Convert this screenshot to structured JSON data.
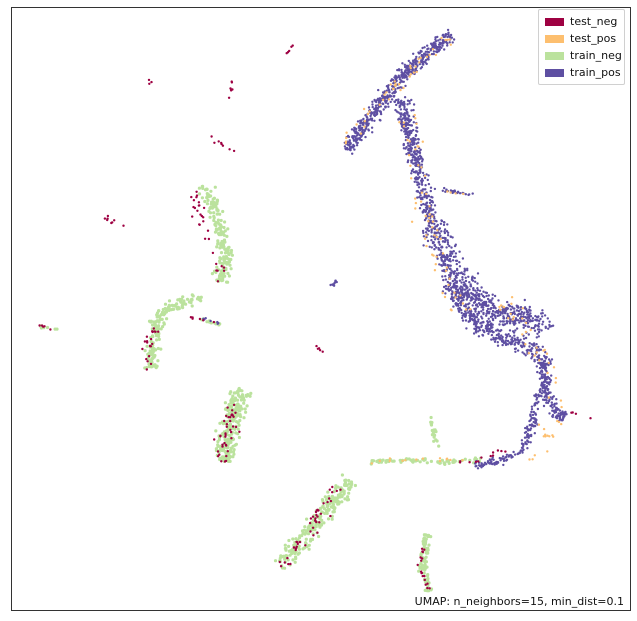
{
  "chart_data": {
    "type": "scatter",
    "title": "",
    "xlabel": "",
    "ylabel": "",
    "axes_ticks": false,
    "grid": false,
    "legend_position": "top-right",
    "xlim": [
      0,
      100
    ],
    "ylim": [
      0,
      100
    ],
    "annotation": "UMAP: n_neighbors=15, min_dist=0.1",
    "series": [
      {
        "name": "test_neg",
        "color": "#9e0142",
        "clusters": [
          {
            "path": [
              [
                44.4,
                92.4
              ],
              [
                45.6,
                93.8
              ]
            ],
            "width": 0.5,
            "count": 5
          },
          {
            "path": [
              [
                22.6,
                87.4
              ],
              [
                22.1,
                88.1
              ]
            ],
            "width": 0.4,
            "count": 3
          },
          {
            "path": [
              [
                35.6,
                87.8
              ],
              [
                35.0,
                83.5
              ]
            ],
            "width": 0.4,
            "count": 6
          },
          {
            "path": [
              [
                32.2,
                78.5
              ],
              [
                35.9,
                76.1
              ]
            ],
            "width": 0.5,
            "count": 8
          },
          {
            "path": [
              [
                15.0,
                65.3
              ],
              [
                18.3,
                63.2
              ]
            ],
            "width": 0.5,
            "count": 8
          },
          {
            "path": [
              [
                4.4,
                47.3
              ],
              [
                6.6,
                46.7
              ]
            ],
            "width": 0.3,
            "count": 5
          },
          {
            "path": [
              [
                29.4,
                69.3
              ],
              [
                30.8,
                63.1
              ],
              [
                32.8,
                58.1
              ],
              [
                33.6,
                54.7
              ]
            ],
            "width": 1.5,
            "count": 30
          },
          {
            "path": [
              [
                23.4,
                47.0
              ],
              [
                21.8,
                43.0
              ],
              [
                21.4,
                40.0
              ]
            ],
            "width": 1.3,
            "count": 20
          },
          {
            "path": [
              [
                27.6,
                48.9
              ],
              [
                31.0,
                48.1
              ],
              [
                33.4,
                47.6
              ]
            ],
            "width": 0.5,
            "count": 6
          },
          {
            "path": [
              [
                49.1,
                43.6
              ],
              [
                51.3,
                42.2
              ]
            ],
            "width": 0.5,
            "count": 5
          },
          {
            "path": [
              [
                36.0,
                34.5
              ],
              [
                34.9,
                29.5
              ],
              [
                33.9,
                23.8
              ]
            ],
            "width": 2.3,
            "count": 40
          },
          {
            "path": [
              [
                52.7,
                20.2
              ],
              [
                48.5,
                13.1
              ],
              [
                43.4,
                7.4
              ]
            ],
            "width": 2.0,
            "count": 45
          },
          {
            "path": [
              [
                66.6,
                10.6
              ],
              [
                66.2,
                6.1
              ],
              [
                67.4,
                3.4
              ]
            ],
            "width": 0.9,
            "count": 18
          },
          {
            "path": [
              [
                71.0,
                24.4
              ],
              [
                76.4,
                25.2
              ],
              [
                80.2,
                26.8
              ]
            ],
            "width": 0.8,
            "count": 12
          },
          {
            "path": [
              [
                90.5,
                33.0
              ],
              [
                94.2,
                31.6
              ]
            ],
            "width": 0.3,
            "count": 4
          }
        ]
      },
      {
        "name": "test_pos",
        "color": "#fdbf6f",
        "clusters": [
          {
            "path": [
              [
                70.5,
                95.1
              ],
              [
                60.0,
                85.0
              ],
              [
                54.0,
                77.3
              ]
            ],
            "width": 1.5,
            "count": 45
          },
          {
            "path": [
              [
                64.0,
                82.0
              ],
              [
                67.0,
                66.0
              ],
              [
                69.5,
                57.0
              ],
              [
                72.3,
                49.0
              ]
            ],
            "width": 3.0,
            "count": 60
          },
          {
            "path": [
              [
                79.0,
                52.5
              ],
              [
                86.0,
                42.0
              ],
              [
                88.7,
                33.5
              ],
              [
                84.0,
                24.5
              ]
            ],
            "width": 2.5,
            "count": 50
          },
          {
            "path": [
              [
                58.0,
                24.7
              ],
              [
                67.0,
                25.0
              ],
              [
                74.0,
                24.8
              ]
            ],
            "width": 0.6,
            "count": 14
          },
          {
            "path": [
              [
                68.5,
                69.5
              ],
              [
                73.5,
                69.0
              ]
            ],
            "width": 0.4,
            "count": 4
          }
        ]
      },
      {
        "name": "train_neg",
        "color": "#bbe29d",
        "clusters": [
          {
            "path": [
              [
                31.5,
                70.5
              ],
              [
                33.5,
                64.0
              ],
              [
                35.0,
                58.5
              ],
              [
                33.5,
                54.5
              ]
            ],
            "width": 1.8,
            "count": 180
          },
          {
            "path": [
              [
                30.5,
                52.0
              ],
              [
                26.5,
                51.0
              ],
              [
                23.5,
                48.5
              ],
              [
                22.8,
                43.5
              ],
              [
                22.4,
                40.0
              ]
            ],
            "width": 1.5,
            "count": 170
          },
          {
            "path": [
              [
                37.3,
                36.5
              ],
              [
                35.2,
                30.5
              ],
              [
                34.3,
                24.7
              ]
            ],
            "width": 2.5,
            "count": 240
          },
          {
            "path": [
              [
                55.0,
                21.5
              ],
              [
                50.0,
                15.5
              ],
              [
                45.0,
                9.0
              ],
              [
                43.3,
                7.5
              ]
            ],
            "width": 2.2,
            "count": 230
          },
          {
            "path": [
              [
                67.2,
                12.5
              ],
              [
                66.4,
                7.0
              ],
              [
                67.5,
                3.2
              ]
            ],
            "width": 1.0,
            "count": 80
          },
          {
            "path": [
              [
                58.0,
                24.7
              ],
              [
                64.0,
                24.8
              ],
              [
                70.0,
                24.6
              ],
              [
                76.0,
                25.0
              ]
            ],
            "width": 0.5,
            "count": 70
          },
          {
            "path": [
              [
                67.6,
                32.0
              ],
              [
                69.0,
                27.0
              ]
            ],
            "width": 0.6,
            "count": 20
          },
          {
            "path": [
              [
                4.4,
                47.2
              ],
              [
                7.2,
                46.6
              ]
            ],
            "width": 0.3,
            "count": 10
          },
          {
            "path": [
              [
                30.5,
                48.3
              ],
              [
                34.0,
                47.4
              ]
            ],
            "width": 0.4,
            "count": 12
          }
        ]
      },
      {
        "name": "train_pos",
        "color": "#5e4fa2",
        "clusters": [
          {
            "path": [
              [
                71.2,
                95.2
              ],
              [
                68.0,
                93.5
              ],
              [
                64.0,
                89.5
              ],
              [
                59.5,
                84.0
              ],
              [
                56.0,
                79.0
              ],
              [
                54.2,
                76.4
              ]
            ],
            "width": 1.8,
            "count": 520
          },
          {
            "path": [
              [
                63.0,
                85.0
              ],
              [
                64.5,
                78.0
              ],
              [
                66.5,
                70.0
              ],
              [
                68.0,
                64.0
              ]
            ],
            "width": 2.0,
            "count": 380
          },
          {
            "path": [
              [
                68.0,
                64.0
              ],
              [
                70.0,
                59.5
              ],
              [
                72.0,
                55.5
              ],
              [
                75.0,
                51.5
              ],
              [
                79.0,
                49.0
              ],
              [
                84.0,
                48.5
              ],
              [
                86.0,
                46.0
              ]
            ],
            "width": 3.5,
            "count": 620
          },
          {
            "path": [
              [
                70.5,
                54.0
              ],
              [
                75.0,
                47.5
              ],
              [
                80.0,
                45.0
              ],
              [
                85.0,
                43.0
              ],
              [
                86.7,
                40.5
              ]
            ],
            "width": 2.0,
            "count": 360
          },
          {
            "path": [
              [
                86.0,
                41.0
              ],
              [
                86.5,
                36.0
              ],
              [
                87.8,
                33.0
              ],
              [
                89.5,
                32.0
              ]
            ],
            "width": 1.5,
            "count": 180
          },
          {
            "path": [
              [
                85.0,
                36.0
              ],
              [
                84.0,
                30.0
              ],
              [
                82.5,
                26.5
              ],
              [
                79.0,
                24.8
              ],
              [
                75.0,
                24.0
              ]
            ],
            "width": 1.0,
            "count": 160
          },
          {
            "path": [
              [
                69.8,
                69.8
              ],
              [
                72.5,
                69.3
              ],
              [
                74.6,
                69.0
              ]
            ],
            "width": 0.4,
            "count": 25
          },
          {
            "path": [
              [
                51.9,
                53.8
              ],
              [
                52.5,
                55.0
              ]
            ],
            "width": 0.4,
            "count": 10
          },
          {
            "path": [
              [
                30.0,
                48.5
              ],
              [
                33.5,
                47.6
              ]
            ],
            "width": 0.3,
            "count": 8
          }
        ]
      }
    ]
  }
}
